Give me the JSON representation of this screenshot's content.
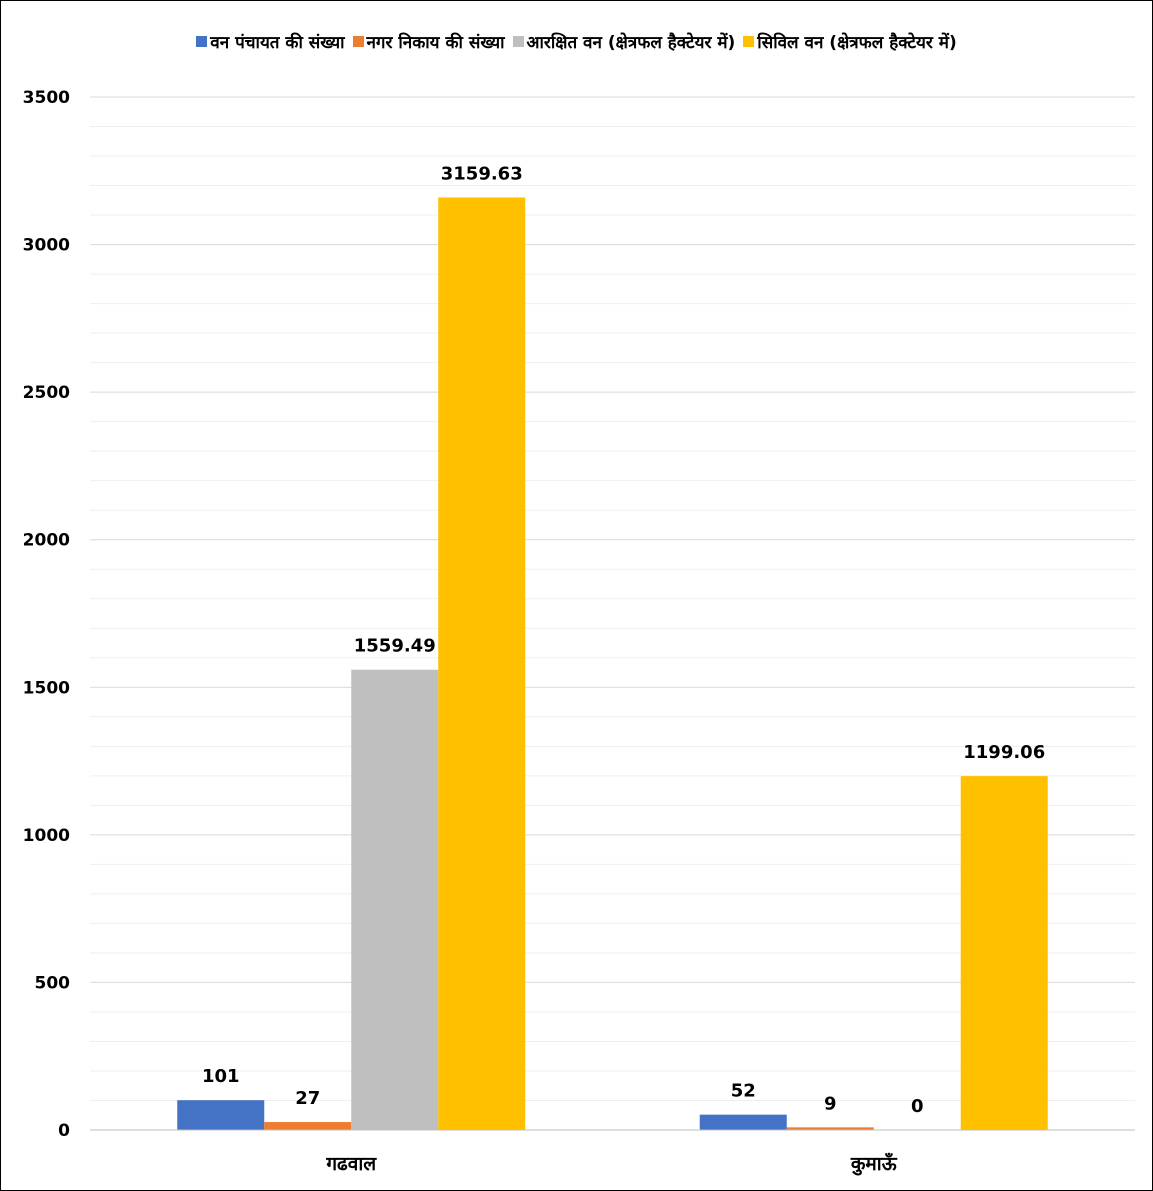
{
  "chart_data": {
    "type": "bar",
    "categories": [
      "गढवाल",
      "कुमाऊँ"
    ],
    "series": [
      {
        "name": "वन पंचायत की संख्या",
        "color": "#4472C4",
        "values": [
          101,
          52
        ]
      },
      {
        "name": "नगर निकाय की संख्या",
        "color": "#ED7D31",
        "values": [
          27,
          9
        ]
      },
      {
        "name": "आरक्षित वन (क्षेत्रफल हैक्टेयर में)",
        "color": "#BFBFBF",
        "values": [
          1559.49,
          0
        ]
      },
      {
        "name": "सिविल वन (क्षेत्रफल हैक्टेयर में)",
        "color": "#FFC000",
        "values": [
          3159.63,
          1199.06
        ]
      }
    ],
    "data_labels": [
      [
        "101",
        "27",
        "1559.49",
        "3159.63"
      ],
      [
        "52",
        "9",
        "0",
        "1199.06"
      ]
    ],
    "yticks": [
      "0",
      "500",
      "1000",
      "1500",
      "2000",
      "2500",
      "3000",
      "3500"
    ],
    "ylim": [
      0,
      3500
    ],
    "minor_grid_step": 100,
    "grid": true,
    "legend_position": "top"
  }
}
